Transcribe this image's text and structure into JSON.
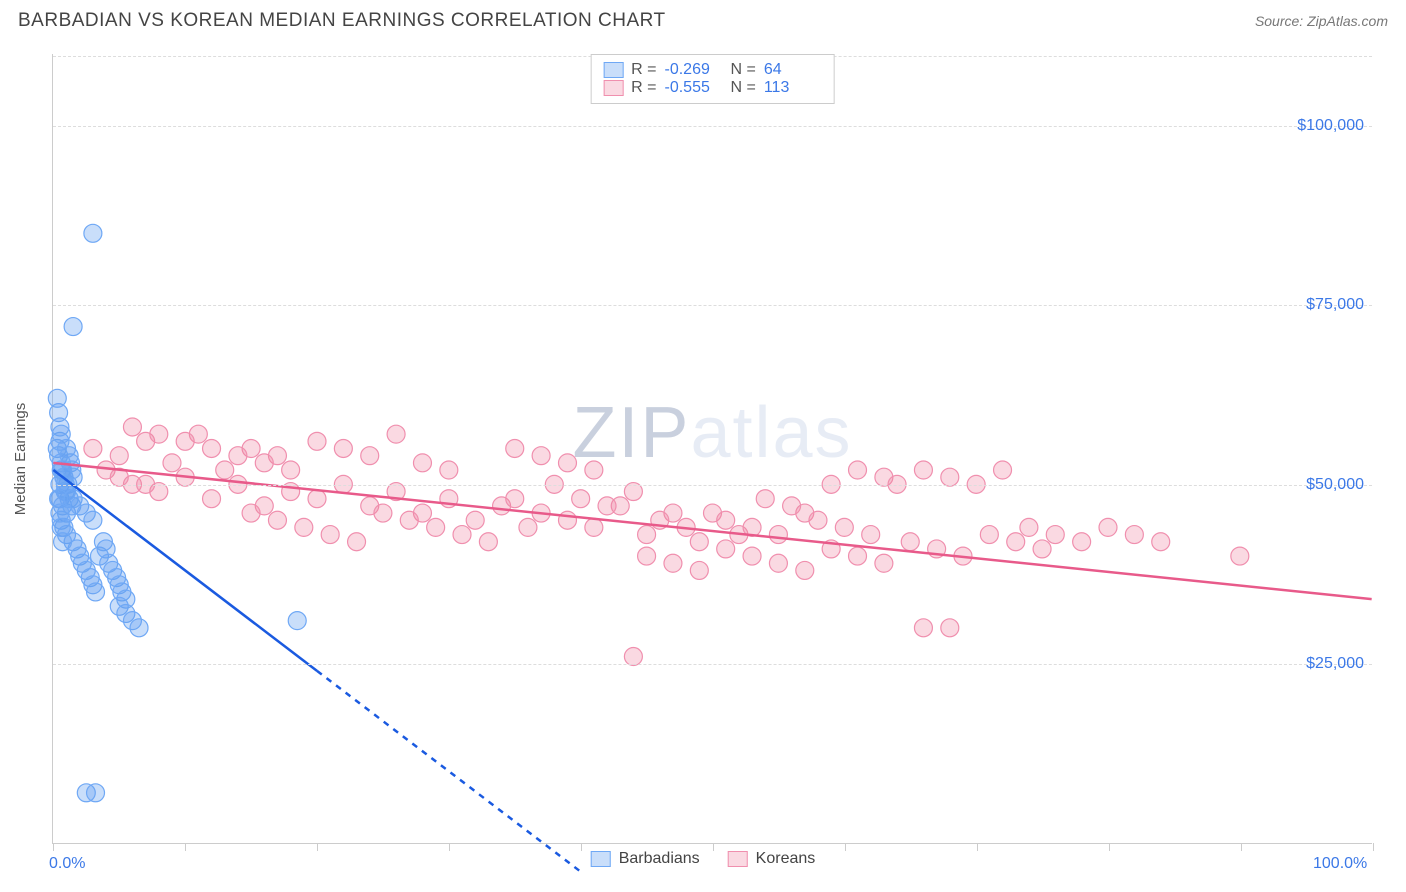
{
  "title": "BARBADIAN VS KOREAN MEDIAN EARNINGS CORRELATION CHART",
  "source": "Source: ZipAtlas.com",
  "ylabel": "Median Earnings",
  "watermark": "ZIPatlas",
  "colors": {
    "blue_fill": "rgba(100,160,240,0.35)",
    "blue_stroke": "#6fa8f5",
    "blue_line": "#1a5ae0",
    "pink_fill": "rgba(240,130,160,0.30)",
    "pink_stroke": "#f08fae",
    "pink_line": "#e85a8a",
    "tick_text": "#3b78e7",
    "grid": "#dddddd",
    "axis": "#cccccc"
  },
  "chart": {
    "type": "scatter",
    "xlim": [
      0,
      100
    ],
    "ylim": [
      0,
      110000
    ],
    "y_ticks": [
      25000,
      50000,
      75000,
      100000
    ],
    "y_tick_labels": [
      "$25,000",
      "$50,000",
      "$75,000",
      "$100,000"
    ],
    "x_ticks": [
      0,
      10,
      20,
      30,
      40,
      50,
      60,
      70,
      80,
      90,
      100
    ],
    "x_tick_labels_shown": {
      "0": "0.0%",
      "100": "100.0%"
    },
    "marker_radius": 9,
    "marker_stroke_width": 1.2,
    "trend_line_width": 2.5
  },
  "legend_top": [
    {
      "swatch_fill": "rgba(100,160,240,0.35)",
      "swatch_stroke": "#6fa8f5",
      "r": "-0.269",
      "n": "64"
    },
    {
      "swatch_fill": "rgba(240,130,160,0.30)",
      "swatch_stroke": "#f08fae",
      "r": "-0.555",
      "n": "113"
    }
  ],
  "legend_bottom": [
    {
      "swatch_fill": "rgba(100,160,240,0.35)",
      "swatch_stroke": "#6fa8f5",
      "label": "Barbadians"
    },
    {
      "swatch_fill": "rgba(240,130,160,0.30)",
      "swatch_stroke": "#f08fae",
      "label": "Koreans"
    }
  ],
  "series": {
    "barbadians": {
      "color_fill": "rgba(100,160,240,0.35)",
      "color_stroke": "#6fa8f5",
      "trend_color": "#1a5ae0",
      "trend": {
        "x1": 0,
        "y1": 52000,
        "x2": 20,
        "y2": 24000,
        "x_dash_to": 40,
        "y_dash_to": -4000
      },
      "points": [
        [
          0.5,
          50000
        ],
        [
          0.5,
          48000
        ],
        [
          0.6,
          52000
        ],
        [
          0.7,
          47000
        ],
        [
          0.8,
          51000
        ],
        [
          0.9,
          49000
        ],
        [
          1.0,
          46000
        ],
        [
          1.1,
          50000
        ],
        [
          1.2,
          48000
        ],
        [
          1.3,
          53000
        ],
        [
          1.4,
          47000
        ],
        [
          1.5,
          51000
        ],
        [
          0.6,
          45000
        ],
        [
          0.8,
          44000
        ],
        [
          1.0,
          43000
        ],
        [
          1.5,
          42000
        ],
        [
          1.8,
          41000
        ],
        [
          2.0,
          40000
        ],
        [
          2.2,
          39000
        ],
        [
          2.5,
          38000
        ],
        [
          2.8,
          37000
        ],
        [
          3.0,
          36000
        ],
        [
          3.2,
          35000
        ],
        [
          3.5,
          40000
        ],
        [
          3.8,
          42000
        ],
        [
          4.0,
          41000
        ],
        [
          4.2,
          39000
        ],
        [
          4.5,
          38000
        ],
        [
          4.8,
          37000
        ],
        [
          5.0,
          36000
        ],
        [
          5.2,
          35000
        ],
        [
          5.5,
          34000
        ],
        [
          0.3,
          55000
        ],
        [
          0.4,
          54000
        ],
        [
          0.5,
          56000
        ],
        [
          0.6,
          53000
        ],
        [
          0.7,
          52000
        ],
        [
          0.8,
          51000
        ],
        [
          0.9,
          50000
        ],
        [
          1.0,
          49000
        ],
        [
          0.4,
          60000
        ],
        [
          0.5,
          58000
        ],
        [
          0.6,
          57000
        ],
        [
          0.3,
          62000
        ],
        [
          0.4,
          48000
        ],
        [
          0.5,
          46000
        ],
        [
          0.6,
          44000
        ],
        [
          0.7,
          42000
        ],
        [
          1.5,
          48000
        ],
        [
          2.0,
          47000
        ],
        [
          2.5,
          46000
        ],
        [
          3.0,
          45000
        ],
        [
          5.0,
          33000
        ],
        [
          5.5,
          32000
        ],
        [
          6.0,
          31000
        ],
        [
          6.5,
          30000
        ],
        [
          3.0,
          85000
        ],
        [
          1.5,
          72000
        ],
        [
          2.5,
          7000
        ],
        [
          3.2,
          7000
        ],
        [
          18.5,
          31000
        ],
        [
          1.0,
          55000
        ],
        [
          1.2,
          54000
        ],
        [
          1.4,
          52000
        ]
      ]
    },
    "koreans": {
      "color_fill": "rgba(240,130,160,0.30)",
      "color_stroke": "#f08fae",
      "trend_color": "#e85a8a",
      "trend": {
        "x1": 0,
        "y1": 53000,
        "x2": 100,
        "y2": 34000
      },
      "points": [
        [
          3,
          55000
        ],
        [
          5,
          54000
        ],
        [
          7,
          56000
        ],
        [
          9,
          53000
        ],
        [
          11,
          57000
        ],
        [
          13,
          52000
        ],
        [
          15,
          55000
        ],
        [
          17,
          54000
        ],
        [
          6,
          50000
        ],
        [
          8,
          49000
        ],
        [
          10,
          51000
        ],
        [
          12,
          48000
        ],
        [
          14,
          50000
        ],
        [
          16,
          47000
        ],
        [
          18,
          49000
        ],
        [
          20,
          48000
        ],
        [
          22,
          50000
        ],
        [
          24,
          47000
        ],
        [
          26,
          49000
        ],
        [
          28,
          46000
        ],
        [
          30,
          48000
        ],
        [
          32,
          45000
        ],
        [
          34,
          47000
        ],
        [
          36,
          44000
        ],
        [
          20,
          56000
        ],
        [
          22,
          55000
        ],
        [
          24,
          54000
        ],
        [
          26,
          57000
        ],
        [
          28,
          53000
        ],
        [
          30,
          52000
        ],
        [
          15,
          46000
        ],
        [
          17,
          45000
        ],
        [
          19,
          44000
        ],
        [
          21,
          43000
        ],
        [
          23,
          42000
        ],
        [
          25,
          46000
        ],
        [
          27,
          45000
        ],
        [
          29,
          44000
        ],
        [
          31,
          43000
        ],
        [
          33,
          42000
        ],
        [
          35,
          48000
        ],
        [
          37,
          46000
        ],
        [
          39,
          45000
        ],
        [
          41,
          44000
        ],
        [
          43,
          47000
        ],
        [
          45,
          43000
        ],
        [
          47,
          46000
        ],
        [
          49,
          42000
        ],
        [
          38,
          50000
        ],
        [
          40,
          48000
        ],
        [
          42,
          47000
        ],
        [
          44,
          49000
        ],
        [
          46,
          45000
        ],
        [
          48,
          44000
        ],
        [
          50,
          46000
        ],
        [
          52,
          43000
        ],
        [
          35,
          55000
        ],
        [
          37,
          54000
        ],
        [
          39,
          53000
        ],
        [
          41,
          52000
        ],
        [
          51,
          45000
        ],
        [
          53,
          44000
        ],
        [
          55,
          43000
        ],
        [
          57,
          46000
        ],
        [
          54,
          48000
        ],
        [
          56,
          47000
        ],
        [
          58,
          45000
        ],
        [
          60,
          44000
        ],
        [
          62,
          43000
        ],
        [
          59,
          50000
        ],
        [
          61,
          52000
        ],
        [
          63,
          51000
        ],
        [
          64,
          50000
        ],
        [
          66,
          52000
        ],
        [
          68,
          51000
        ],
        [
          70,
          50000
        ],
        [
          45,
          40000
        ],
        [
          47,
          39000
        ],
        [
          49,
          38000
        ],
        [
          51,
          41000
        ],
        [
          53,
          40000
        ],
        [
          55,
          39000
        ],
        [
          57,
          38000
        ],
        [
          59,
          41000
        ],
        [
          61,
          40000
        ],
        [
          63,
          39000
        ],
        [
          65,
          42000
        ],
        [
          67,
          41000
        ],
        [
          69,
          40000
        ],
        [
          71,
          43000
        ],
        [
          73,
          42000
        ],
        [
          75,
          41000
        ],
        [
          72,
          52000
        ],
        [
          74,
          44000
        ],
        [
          76,
          43000
        ],
        [
          78,
          42000
        ],
        [
          80,
          44000
        ],
        [
          82,
          43000
        ],
        [
          84,
          42000
        ],
        [
          44,
          26000
        ],
        [
          66,
          30000
        ],
        [
          68,
          30000
        ],
        [
          90,
          40000
        ],
        [
          6,
          58000
        ],
        [
          8,
          57000
        ],
        [
          10,
          56000
        ],
        [
          12,
          55000
        ],
        [
          14,
          54000
        ],
        [
          16,
          53000
        ],
        [
          18,
          52000
        ],
        [
          4,
          52000
        ],
        [
          5,
          51000
        ],
        [
          7,
          50000
        ]
      ]
    }
  }
}
